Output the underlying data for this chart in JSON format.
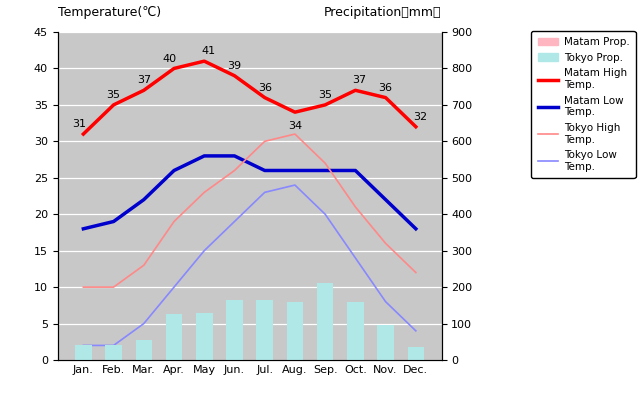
{
  "months": [
    "Jan.",
    "Feb.",
    "Mar.",
    "Apr.",
    "May",
    "Jun.",
    "Jul.",
    "Aug.",
    "Sep.",
    "Oct.",
    "Nov.",
    "Dec."
  ],
  "matam_high": [
    31,
    35,
    37,
    40,
    41,
    39,
    36,
    34,
    35,
    37,
    36,
    32
  ],
  "matam_low": [
    18,
    19,
    22,
    26,
    28,
    28,
    26,
    26,
    26,
    26,
    22,
    18
  ],
  "tokyo_high": [
    10,
    10,
    13,
    19,
    23,
    26,
    30,
    31,
    27,
    21,
    16,
    12
  ],
  "tokyo_low": [
    2,
    2,
    5,
    10,
    15,
    19,
    23,
    24,
    20,
    14,
    8,
    4
  ],
  "matam_precip": [
    0,
    0,
    0,
    0,
    0,
    0,
    0,
    0,
    0,
    0,
    0,
    0
  ],
  "tokyo_precip_mm": [
    40,
    40,
    55,
    125,
    130,
    165,
    165,
    160,
    210,
    160,
    95,
    35
  ],
  "matam_high_color": "#ff0000",
  "matam_low_color": "#0000cc",
  "tokyo_high_color": "#ff8888",
  "tokyo_low_color": "#8888ff",
  "matam_precip_color": "#ffb6c1",
  "tokyo_precip_color": "#b0e8e8",
  "bg_color": "#c8c8c8",
  "temp_ylim": [
    0,
    45
  ],
  "temp_yticks": [
    0,
    5,
    10,
    15,
    20,
    25,
    30,
    35,
    40,
    45
  ],
  "precip_ylim": [
    0,
    900
  ],
  "precip_yticks": [
    0,
    100,
    200,
    300,
    400,
    500,
    600,
    700,
    800,
    900
  ],
  "title_left": "Temperature(℃)",
  "title_right": "Precipitation（mm）",
  "legend_labels": [
    "Matam Prop.",
    "Tokyo Prop.",
    "Matam High\nTemp.",
    "Matam Low\nTemp.",
    "Tokyo High\nTemp.",
    "Tokyo Low\nTemp."
  ]
}
